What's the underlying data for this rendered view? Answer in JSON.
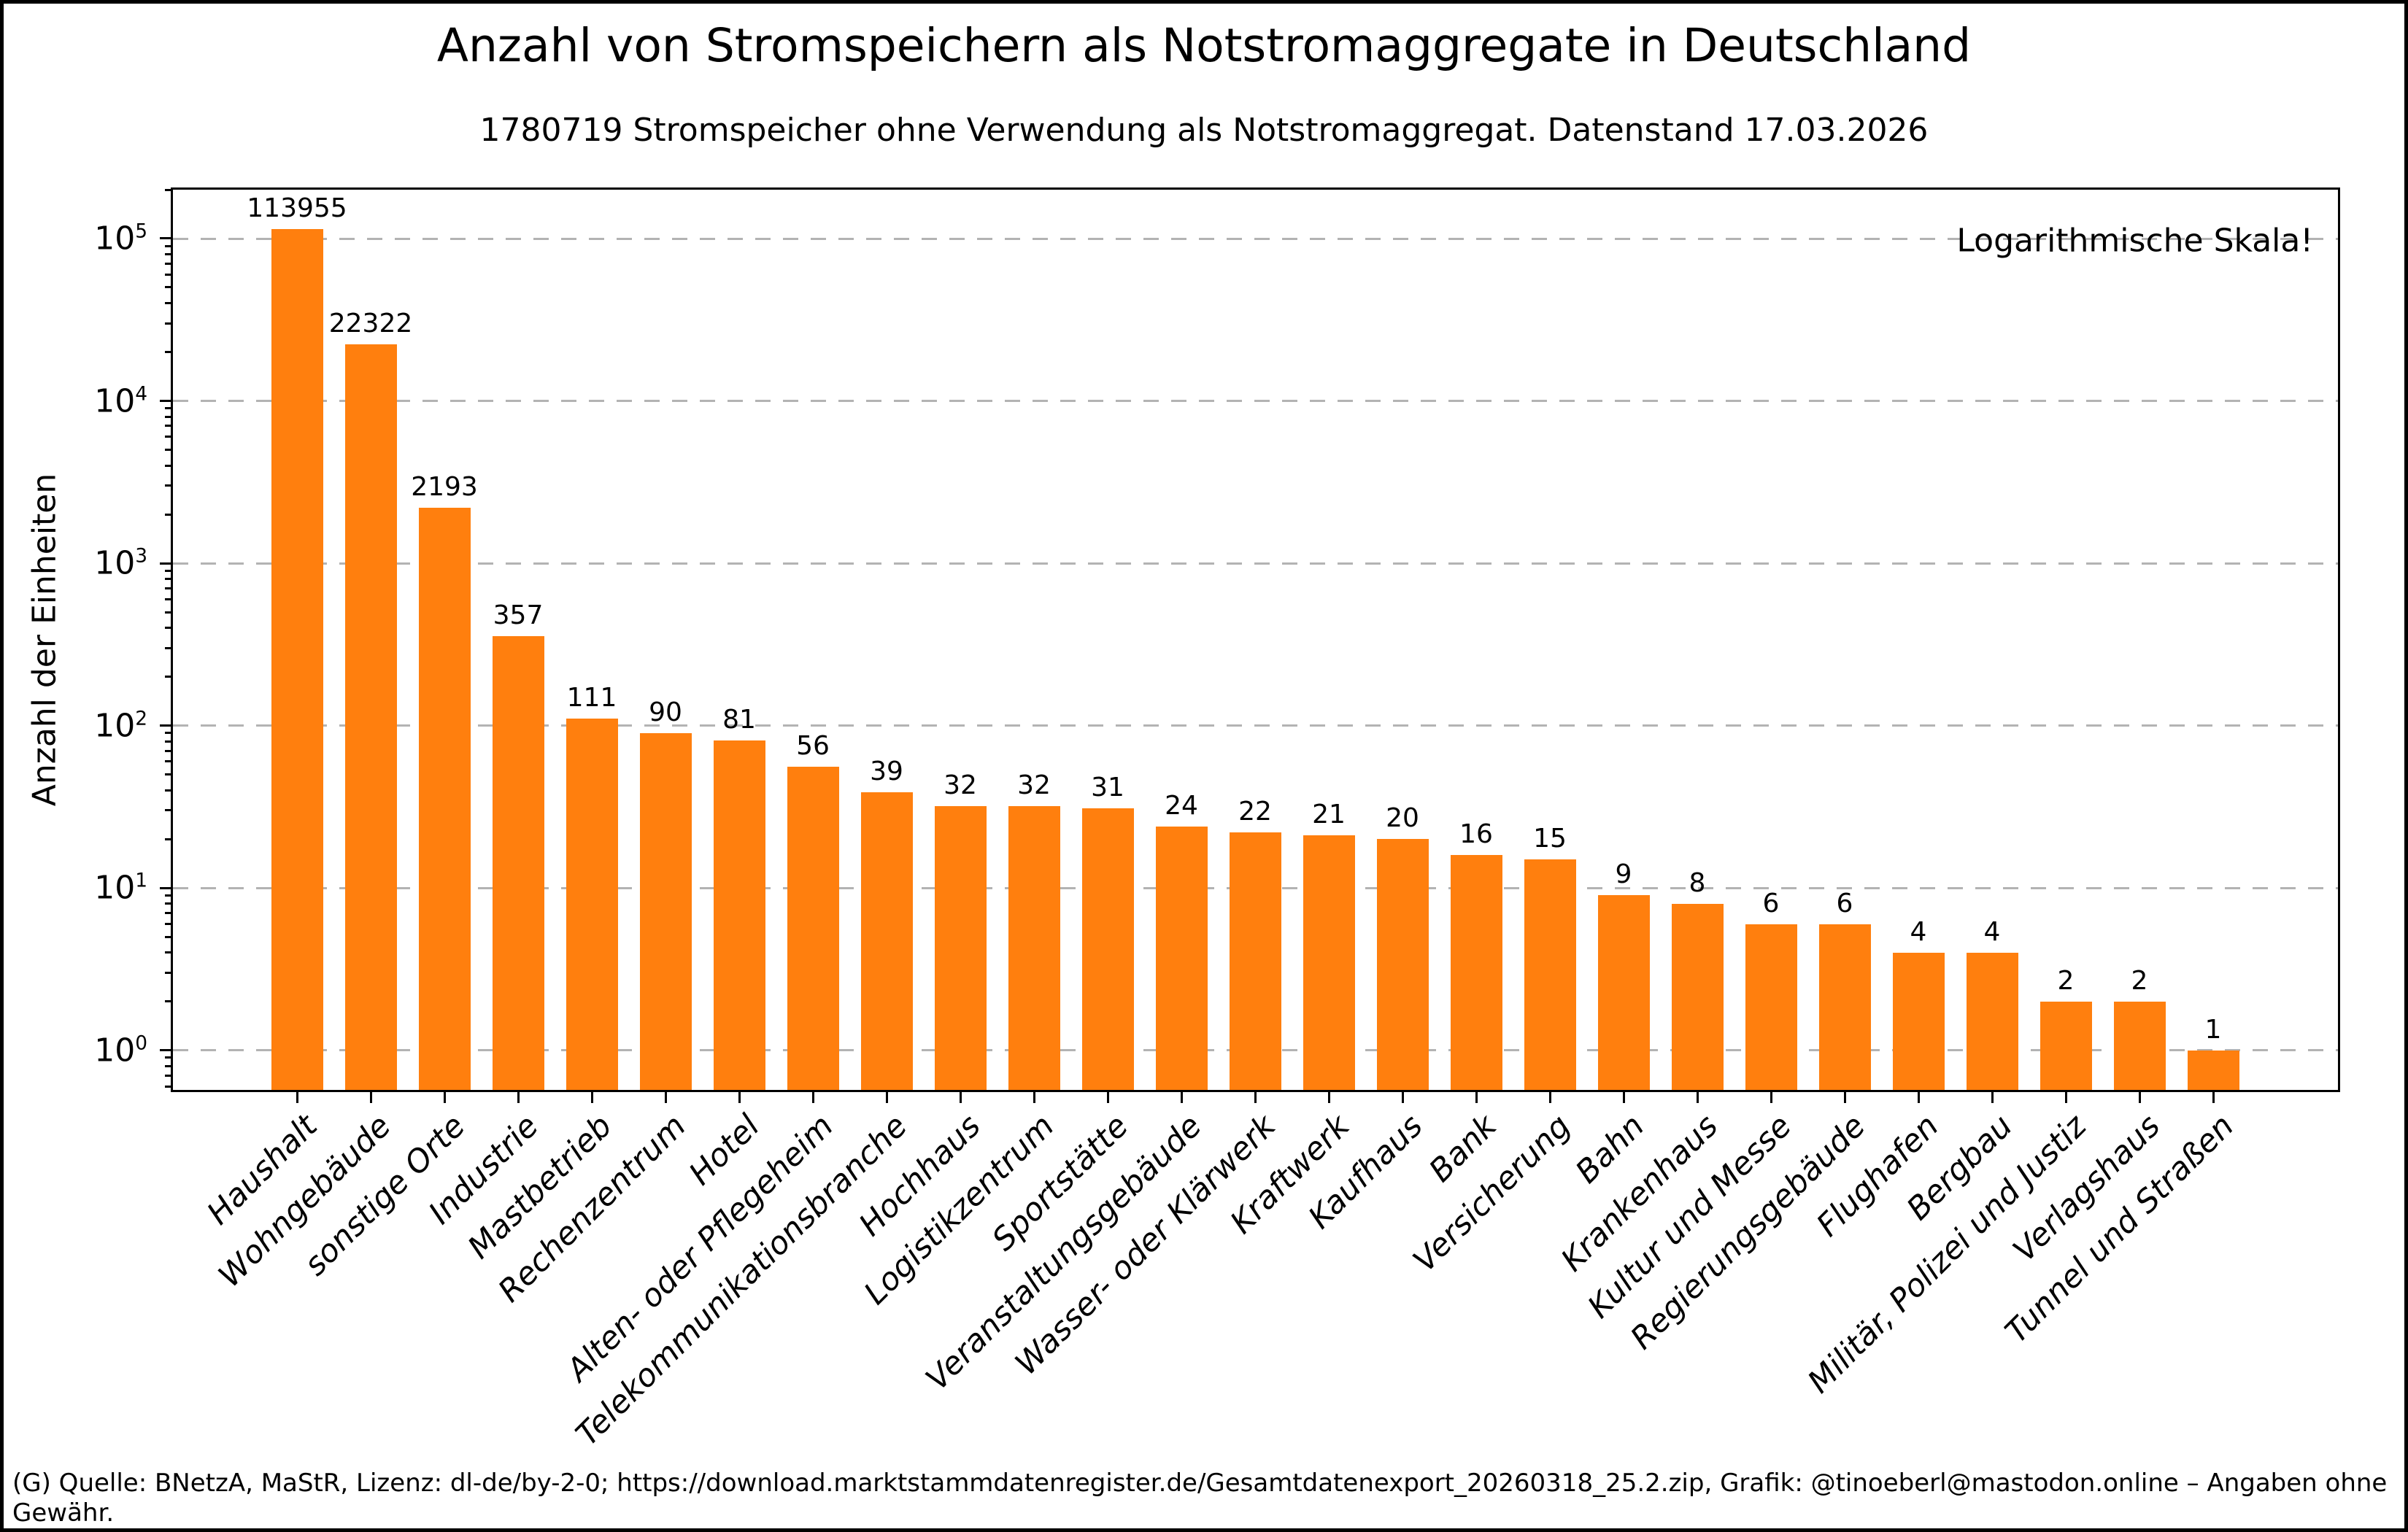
{
  "footer": {
    "text": "(G) Quelle: BNetzA, MaStR, Lizenz: dl-de/by-2-0; https://download.marktstammdatenregister.de/Gesamtdatenexport_20260318_25.2.zip, Grafik: @tinoeberl@mastodon.online – Angaben ohne Gewähr."
  },
  "chart_data": {
    "type": "bar",
    "title": "Anzahl von Stromspeichern als Notstromaggregate in Deutschland",
    "subtitle": "1780719 Stromspeicher ohne Verwendung als Notstromaggregat. Datenstand 17.03.2026",
    "ylabel": "Anzahl der Einheiten",
    "xlabel": "",
    "annotation": "Logarithmische Skala!",
    "yscale": "log",
    "ylim": [
      0.57,
      200000
    ],
    "ytick_exponents": [
      0,
      1,
      2,
      3,
      4,
      5
    ],
    "grid": "horizontal-dashed",
    "legend": null,
    "colors": {
      "bar": "#ff7f0e",
      "grid": "#b3b3b3",
      "axis": "#000000",
      "background": "#ffffff"
    },
    "categories": [
      "Haushalt",
      "Wohngebäude",
      "sonstige Orte",
      "Industrie",
      "Mastbetrieb",
      "Rechenzentrum",
      "Hotel",
      "Alten- oder Pflegeheim",
      "Telekommunikationsbranche",
      "Hochhaus",
      "Logistikzentrum",
      "Sportstätte",
      "Veranstaltungsgebäude",
      "Wasser- oder Klärwerk",
      "Kraftwerk",
      "Kaufhaus",
      "Bank",
      "Versicherung",
      "Bahn",
      "Krankenhaus",
      "Kultur und Messe",
      "Regierungsgebäude",
      "Flughafen",
      "Bergbau",
      "Militär, Polizei und Justiz",
      "Verlagshaus",
      "Tunnel und Straßen"
    ],
    "values": [
      113955,
      22322,
      2193,
      357,
      111,
      90,
      81,
      56,
      39,
      32,
      32,
      31,
      24,
      22,
      21,
      20,
      16,
      15,
      9,
      8,
      6,
      6,
      4,
      4,
      2,
      2,
      1
    ]
  }
}
